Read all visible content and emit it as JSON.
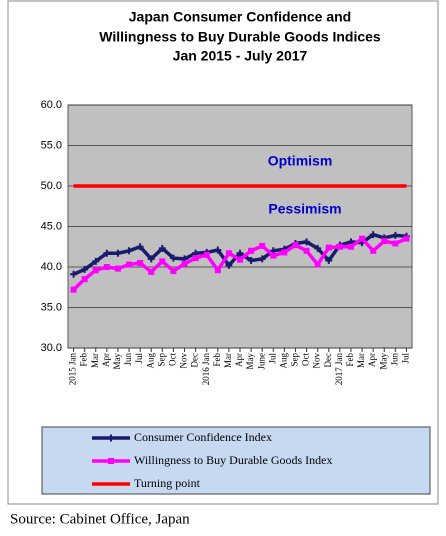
{
  "chart_data": {
    "type": "line",
    "title": [
      "Japan Consumer Confidence and",
      "Willingness to Buy Durable Goods Indices",
      "Jan 2015 - July 2017"
    ],
    "annotations": [
      "Optimism",
      "Pessimism"
    ],
    "source": "Source:  Cabinet Office, Japan",
    "categories": [
      "2015 Jan",
      "Feb",
      "Mar",
      "Apr",
      "May",
      "Jun",
      "Jul",
      "Aug",
      "Sep",
      "Oct",
      "Nov",
      "Dec",
      "2016 Jan",
      "Feb",
      "Mar",
      "Apr",
      "May",
      "June",
      "Jul",
      "Aug",
      "Sep",
      "Oct",
      "Nov",
      "Dec",
      "2017 Jan",
      "Feb",
      "Mar",
      "Apr",
      "May",
      "Jun",
      "Jul"
    ],
    "series": [
      {
        "name": "Consumer Confidence Index",
        "color": "#1a1a6e",
        "marker": "plus",
        "values": [
          39.1,
          39.7,
          40.7,
          41.7,
          41.7,
          42.0,
          42.5,
          41.0,
          42.3,
          41.1,
          41.0,
          41.7,
          41.8,
          42.1,
          40.2,
          41.7,
          40.8,
          41.0,
          42.0,
          42.2,
          42.9,
          43.1,
          42.3,
          40.8,
          42.7,
          43.1,
          43.0,
          44.0,
          43.6,
          43.9,
          43.8
        ]
      },
      {
        "name": "Willingness to Buy Durable Goods Index",
        "color": "#ff00ff",
        "marker": "square",
        "values": [
          37.2,
          38.5,
          39.6,
          40.0,
          39.8,
          40.3,
          40.5,
          39.4,
          40.7,
          39.5,
          40.4,
          41.1,
          41.5,
          39.6,
          41.7,
          40.9,
          42.0,
          42.6,
          41.4,
          41.8,
          42.7,
          42.0,
          40.3,
          42.4,
          42.5,
          42.5,
          43.5,
          42.0,
          43.2,
          42.9,
          43.5
        ]
      },
      {
        "name": "Turning point",
        "color": "#ff0000",
        "marker": "none",
        "values": [
          50,
          50,
          50,
          50,
          50,
          50,
          50,
          50,
          50,
          50,
          50,
          50,
          50,
          50,
          50,
          50,
          50,
          50,
          50,
          50,
          50,
          50,
          50,
          50,
          50,
          50,
          50,
          50,
          50,
          50,
          50
        ]
      }
    ],
    "ylim": [
      30,
      60
    ],
    "yticks": [
      {
        "value": 30,
        "label": "30.0"
      },
      {
        "value": 35,
        "label": "35.0"
      },
      {
        "value": 40,
        "label": "40.0"
      },
      {
        "value": 45,
        "label": "45.0"
      },
      {
        "value": 50,
        "label": "50.0"
      },
      {
        "value": 55,
        "label": "55.0"
      },
      {
        "value": 60,
        "label": "60.0"
      }
    ],
    "grid": true,
    "plot_background": "#c0c0c0",
    "legend_position": "bottom"
  }
}
